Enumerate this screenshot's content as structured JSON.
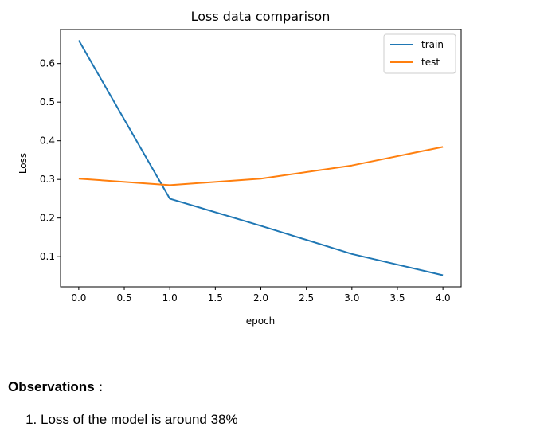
{
  "chart_data": {
    "type": "line",
    "title": "Loss data comparison",
    "xlabel": "epoch",
    "ylabel": "Loss",
    "xlim": [
      -0.2,
      4.2
    ],
    "ylim": [
      0.022,
      0.688
    ],
    "x_ticks": [
      0.0,
      0.5,
      1.0,
      1.5,
      2.0,
      2.5,
      3.0,
      3.5,
      4.0
    ],
    "x_tick_labels": [
      "0.0",
      "0.5",
      "1.0",
      "1.5",
      "2.0",
      "2.5",
      "3.0",
      "3.5",
      "4.0"
    ],
    "y_ticks": [
      0.1,
      0.2,
      0.3,
      0.4,
      0.5,
      0.6
    ],
    "y_tick_labels": [
      "0.1",
      "0.2",
      "0.3",
      "0.4",
      "0.5",
      "0.6"
    ],
    "grid": false,
    "legend_position": "top-right",
    "x": [
      0,
      1,
      2,
      3,
      4
    ],
    "series": [
      {
        "name": "train",
        "color": "#1f77b4",
        "values": [
          0.66,
          0.25,
          0.18,
          0.107,
          0.052
        ]
      },
      {
        "name": "test",
        "color": "#ff7f0e",
        "values": [
          0.302,
          0.285,
          0.302,
          0.336,
          0.384
        ]
      }
    ]
  },
  "notes": {
    "heading": "Observations :",
    "items": [
      "Loss of the model is around 38%"
    ]
  }
}
